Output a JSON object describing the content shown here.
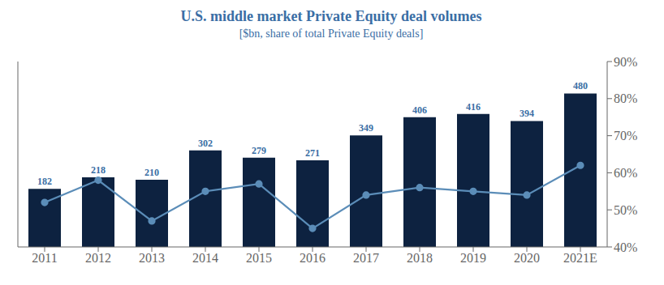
{
  "chart_data": {
    "type": "bar",
    "title": "U.S. middle market Private Equity deal volumes",
    "subtitle": "[$bn, share of total Private Equity deals]",
    "categories": [
      "2011",
      "2012",
      "2013",
      "2014",
      "2015",
      "2016",
      "2017",
      "2018",
      "2019",
      "2020",
      "2021E"
    ],
    "series": [
      {
        "type": "bar",
        "color": "#0d2240",
        "values": [
          182,
          218,
          210,
          302,
          279,
          271,
          349,
          406,
          416,
          394,
          480
        ],
        "data_labels": true
      },
      {
        "type": "line",
        "color": "#5b8db8",
        "axis": "y2",
        "marker": "circle",
        "values": [
          52,
          58,
          47,
          55,
          57,
          45,
          54,
          56,
          55,
          54,
          62
        ]
      }
    ],
    "ylim": [
      0,
      580
    ],
    "y2lim": [
      40,
      90
    ],
    "y2ticks": [
      {
        "value": 40,
        "label": "40%"
      },
      {
        "value": 50,
        "label": "50%"
      },
      {
        "value": 60,
        "label": "60%"
      },
      {
        "value": 70,
        "label": "70%"
      },
      {
        "value": 80,
        "label": "80%"
      },
      {
        "value": 90,
        "label": "90%"
      }
    ],
    "grid": false
  }
}
